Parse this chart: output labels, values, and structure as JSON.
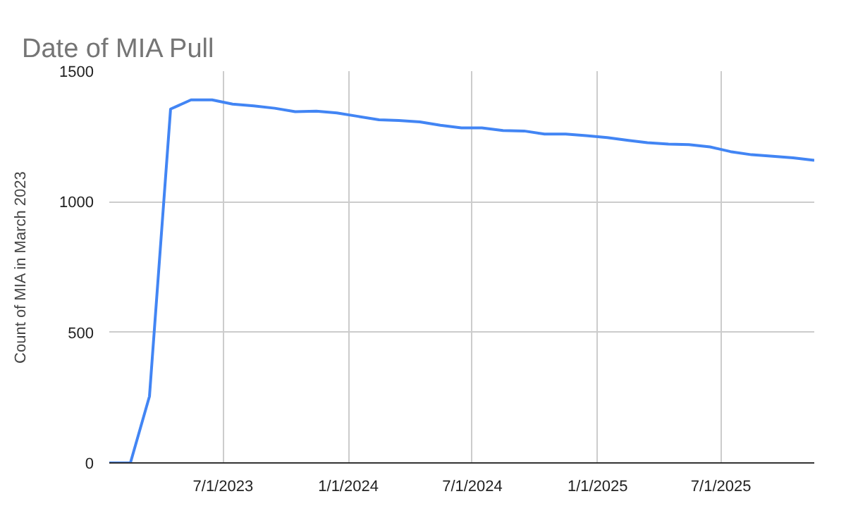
{
  "chart_data": {
    "type": "line",
    "title": "Date of MIA Pull",
    "ylabel": "Count of MIA in March 2023",
    "x": [
      "2023-01-15",
      "2023-02-15",
      "2023-03-15",
      "2023-04-15",
      "2023-05-15",
      "2023-06-15",
      "2023-07-15",
      "2023-08-15",
      "2023-09-15",
      "2023-10-15",
      "2023-11-15",
      "2023-12-15",
      "2024-01-15",
      "2024-02-15",
      "2024-03-15",
      "2024-04-15",
      "2024-05-15",
      "2024-06-15",
      "2024-07-15",
      "2024-08-15",
      "2024-09-15",
      "2024-10-15",
      "2024-11-15",
      "2024-12-15",
      "2025-01-15",
      "2025-02-15",
      "2025-03-15",
      "2025-04-15",
      "2025-05-15",
      "2025-06-15",
      "2025-07-15",
      "2025-08-15",
      "2025-09-15",
      "2025-10-15",
      "2025-11-15"
    ],
    "series": [
      {
        "color": "#4285f4",
        "values": [
          0,
          0,
          255,
          1355,
          1390,
          1390,
          1374,
          1367,
          1358,
          1345,
          1347,
          1340,
          1327,
          1314,
          1311,
          1306,
          1293,
          1283,
          1283,
          1273,
          1271,
          1259,
          1259,
          1253,
          1246,
          1235,
          1226,
          1221,
          1219,
          1210,
          1192,
          1180,
          1174,
          1168,
          1159
        ]
      }
    ],
    "xlim": [
      "2023-01-15",
      "2025-11-15"
    ],
    "xticks": [
      {
        "value": "2023-07-01",
        "label": "7/1/2023"
      },
      {
        "value": "2024-01-01",
        "label": "1/1/2024"
      },
      {
        "value": "2024-07-01",
        "label": "7/1/2024"
      },
      {
        "value": "2025-01-01",
        "label": "1/1/2025"
      },
      {
        "value": "2025-07-01",
        "label": "7/1/2025"
      }
    ],
    "ylim": [
      0,
      1500
    ],
    "yticks": [
      0,
      500,
      1000,
      1500
    ],
    "grid": true,
    "marker": "none",
    "line_style": "solid"
  }
}
